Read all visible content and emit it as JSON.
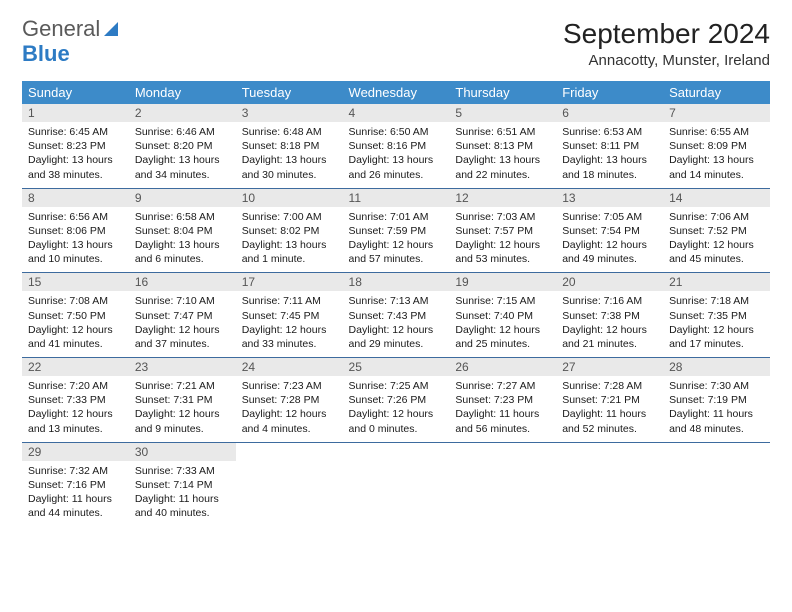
{
  "logo": {
    "word1": "General",
    "word2": "Blue"
  },
  "title": "September 2024",
  "location": "Annacotty, Munster, Ireland",
  "colors": {
    "header_bg": "#3d8bc9",
    "header_text": "#ffffff",
    "daynum_bg": "#e9e9e9",
    "row_divider": "#3d6b9e",
    "logo_gray": "#5a5a5a",
    "logo_blue": "#2d7bc4"
  },
  "weekdays": [
    "Sunday",
    "Monday",
    "Tuesday",
    "Wednesday",
    "Thursday",
    "Friday",
    "Saturday"
  ],
  "weeks": [
    [
      {
        "day": "1",
        "sunrise": "Sunrise: 6:45 AM",
        "sunset": "Sunset: 8:23 PM",
        "daylight": "Daylight: 13 hours and 38 minutes."
      },
      {
        "day": "2",
        "sunrise": "Sunrise: 6:46 AM",
        "sunset": "Sunset: 8:20 PM",
        "daylight": "Daylight: 13 hours and 34 minutes."
      },
      {
        "day": "3",
        "sunrise": "Sunrise: 6:48 AM",
        "sunset": "Sunset: 8:18 PM",
        "daylight": "Daylight: 13 hours and 30 minutes."
      },
      {
        "day": "4",
        "sunrise": "Sunrise: 6:50 AM",
        "sunset": "Sunset: 8:16 PM",
        "daylight": "Daylight: 13 hours and 26 minutes."
      },
      {
        "day": "5",
        "sunrise": "Sunrise: 6:51 AM",
        "sunset": "Sunset: 8:13 PM",
        "daylight": "Daylight: 13 hours and 22 minutes."
      },
      {
        "day": "6",
        "sunrise": "Sunrise: 6:53 AM",
        "sunset": "Sunset: 8:11 PM",
        "daylight": "Daylight: 13 hours and 18 minutes."
      },
      {
        "day": "7",
        "sunrise": "Sunrise: 6:55 AM",
        "sunset": "Sunset: 8:09 PM",
        "daylight": "Daylight: 13 hours and 14 minutes."
      }
    ],
    [
      {
        "day": "8",
        "sunrise": "Sunrise: 6:56 AM",
        "sunset": "Sunset: 8:06 PM",
        "daylight": "Daylight: 13 hours and 10 minutes."
      },
      {
        "day": "9",
        "sunrise": "Sunrise: 6:58 AM",
        "sunset": "Sunset: 8:04 PM",
        "daylight": "Daylight: 13 hours and 6 minutes."
      },
      {
        "day": "10",
        "sunrise": "Sunrise: 7:00 AM",
        "sunset": "Sunset: 8:02 PM",
        "daylight": "Daylight: 13 hours and 1 minute."
      },
      {
        "day": "11",
        "sunrise": "Sunrise: 7:01 AM",
        "sunset": "Sunset: 7:59 PM",
        "daylight": "Daylight: 12 hours and 57 minutes."
      },
      {
        "day": "12",
        "sunrise": "Sunrise: 7:03 AM",
        "sunset": "Sunset: 7:57 PM",
        "daylight": "Daylight: 12 hours and 53 minutes."
      },
      {
        "day": "13",
        "sunrise": "Sunrise: 7:05 AM",
        "sunset": "Sunset: 7:54 PM",
        "daylight": "Daylight: 12 hours and 49 minutes."
      },
      {
        "day": "14",
        "sunrise": "Sunrise: 7:06 AM",
        "sunset": "Sunset: 7:52 PM",
        "daylight": "Daylight: 12 hours and 45 minutes."
      }
    ],
    [
      {
        "day": "15",
        "sunrise": "Sunrise: 7:08 AM",
        "sunset": "Sunset: 7:50 PM",
        "daylight": "Daylight: 12 hours and 41 minutes."
      },
      {
        "day": "16",
        "sunrise": "Sunrise: 7:10 AM",
        "sunset": "Sunset: 7:47 PM",
        "daylight": "Daylight: 12 hours and 37 minutes."
      },
      {
        "day": "17",
        "sunrise": "Sunrise: 7:11 AM",
        "sunset": "Sunset: 7:45 PM",
        "daylight": "Daylight: 12 hours and 33 minutes."
      },
      {
        "day": "18",
        "sunrise": "Sunrise: 7:13 AM",
        "sunset": "Sunset: 7:43 PM",
        "daylight": "Daylight: 12 hours and 29 minutes."
      },
      {
        "day": "19",
        "sunrise": "Sunrise: 7:15 AM",
        "sunset": "Sunset: 7:40 PM",
        "daylight": "Daylight: 12 hours and 25 minutes."
      },
      {
        "day": "20",
        "sunrise": "Sunrise: 7:16 AM",
        "sunset": "Sunset: 7:38 PM",
        "daylight": "Daylight: 12 hours and 21 minutes."
      },
      {
        "day": "21",
        "sunrise": "Sunrise: 7:18 AM",
        "sunset": "Sunset: 7:35 PM",
        "daylight": "Daylight: 12 hours and 17 minutes."
      }
    ],
    [
      {
        "day": "22",
        "sunrise": "Sunrise: 7:20 AM",
        "sunset": "Sunset: 7:33 PM",
        "daylight": "Daylight: 12 hours and 13 minutes."
      },
      {
        "day": "23",
        "sunrise": "Sunrise: 7:21 AM",
        "sunset": "Sunset: 7:31 PM",
        "daylight": "Daylight: 12 hours and 9 minutes."
      },
      {
        "day": "24",
        "sunrise": "Sunrise: 7:23 AM",
        "sunset": "Sunset: 7:28 PM",
        "daylight": "Daylight: 12 hours and 4 minutes."
      },
      {
        "day": "25",
        "sunrise": "Sunrise: 7:25 AM",
        "sunset": "Sunset: 7:26 PM",
        "daylight": "Daylight: 12 hours and 0 minutes."
      },
      {
        "day": "26",
        "sunrise": "Sunrise: 7:27 AM",
        "sunset": "Sunset: 7:23 PM",
        "daylight": "Daylight: 11 hours and 56 minutes."
      },
      {
        "day": "27",
        "sunrise": "Sunrise: 7:28 AM",
        "sunset": "Sunset: 7:21 PM",
        "daylight": "Daylight: 11 hours and 52 minutes."
      },
      {
        "day": "28",
        "sunrise": "Sunrise: 7:30 AM",
        "sunset": "Sunset: 7:19 PM",
        "daylight": "Daylight: 11 hours and 48 minutes."
      }
    ],
    [
      {
        "day": "29",
        "sunrise": "Sunrise: 7:32 AM",
        "sunset": "Sunset: 7:16 PM",
        "daylight": "Daylight: 11 hours and 44 minutes."
      },
      {
        "day": "30",
        "sunrise": "Sunrise: 7:33 AM",
        "sunset": "Sunset: 7:14 PM",
        "daylight": "Daylight: 11 hours and 40 minutes."
      },
      null,
      null,
      null,
      null,
      null
    ]
  ]
}
